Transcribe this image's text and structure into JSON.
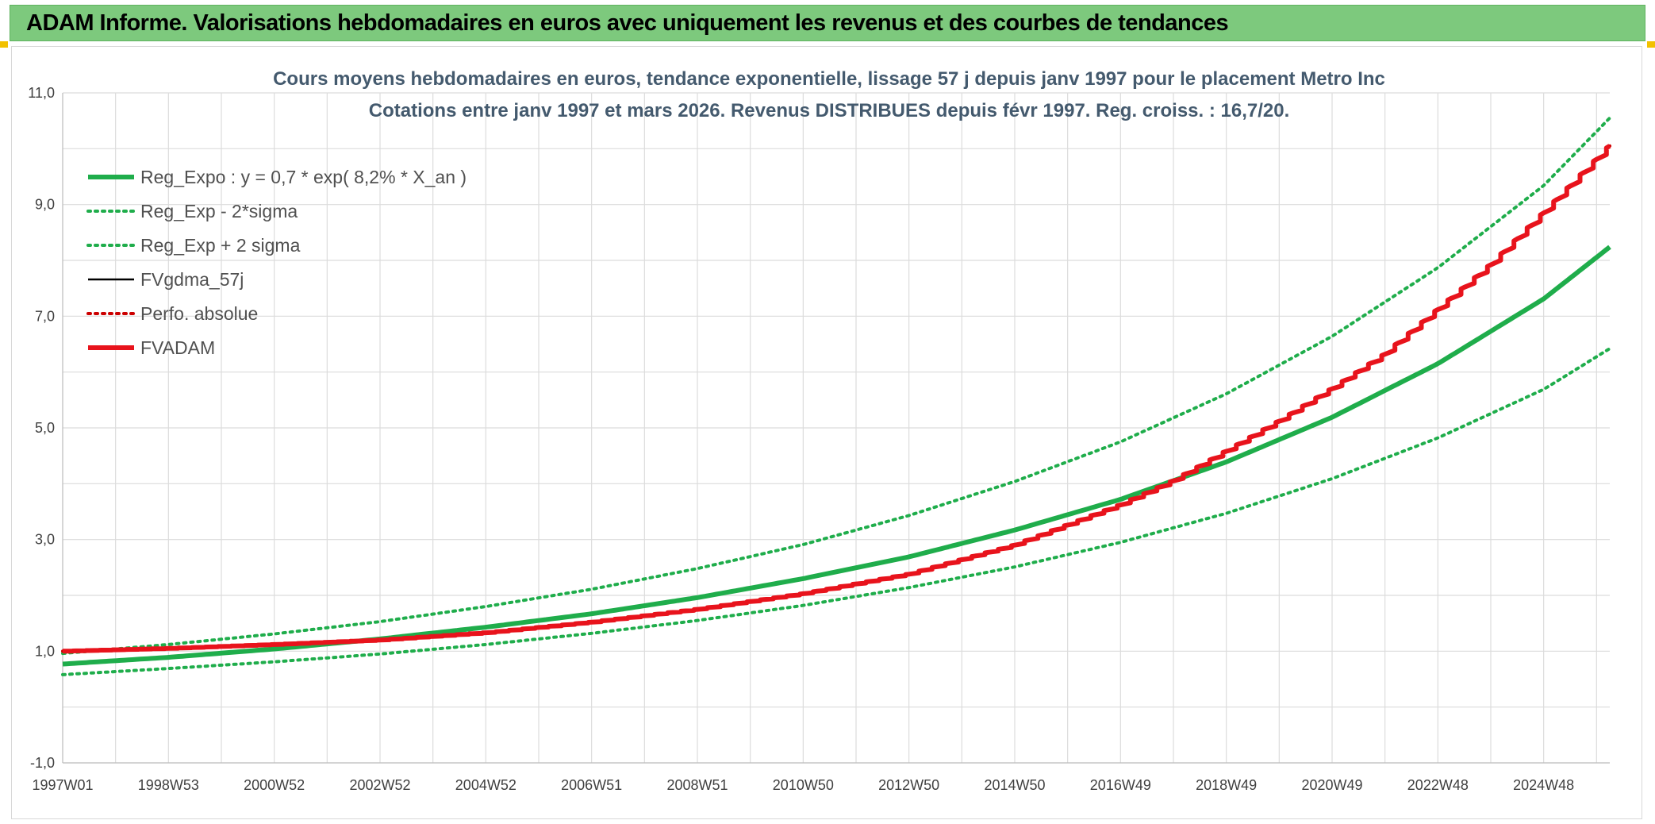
{
  "header": {
    "title": "ADAM Informe. Valorisations hebdomadaires en euros avec uniquement les revenus et des courbes de tendances"
  },
  "chart_data": {
    "type": "line",
    "title_lines": [
      "Cours moyens hebdomadaires en euros, tendance exponentielle, lissage 57 j depuis janv 1997 pour le placement Metro Inc",
      "Cotations entre janv 1997 et mars 2026. Revenus DISTRIBUES depuis févr 1997. Reg. croiss. : 16,7/20."
    ],
    "x_tick_labels": [
      "1997W01",
      "1998W53",
      "2000W52",
      "2002W52",
      "2004W52",
      "2006W51",
      "2008W51",
      "2010W50",
      "2012W50",
      "2014W50",
      "2016W49",
      "2018W49",
      "2020W49",
      "2022W48",
      "2024W48"
    ],
    "x_tick_years": [
      1997.0,
      1999.0,
      2001.0,
      2003.0,
      2005.0,
      2007.0,
      2009.0,
      2011.0,
      2013.0,
      2015.0,
      2017.0,
      2019.0,
      2021.0,
      2023.0,
      2025.0
    ],
    "x_range": [
      1997.0,
      2026.25
    ],
    "ylim": [
      -1.0,
      11.0
    ],
    "y_ticks": [
      -1.0,
      1.0,
      3.0,
      5.0,
      7.0,
      9.0,
      11.0
    ],
    "y_tick_labels": [
      "-1,0",
      "1,0",
      "3,0",
      "5,0",
      "7,0",
      "9,0",
      "11,0"
    ],
    "legend_position": "top-left",
    "grid": true,
    "series": [
      {
        "name": "Reg_Expo : y = 0,7 * exp( 8,2% *  X_an )",
        "color": "#1fad4b",
        "style": "solid-thick",
        "x": [
          1997,
          1999,
          2001,
          2003,
          2005,
          2007,
          2009,
          2011,
          2013,
          2015,
          2017,
          2019,
          2021,
          2023,
          2025,
          2026.25
        ],
        "y": [
          0.77,
          0.89,
          1.04,
          1.22,
          1.43,
          1.67,
          1.96,
          2.3,
          2.69,
          3.17,
          3.72,
          4.39,
          5.19,
          6.15,
          7.31,
          8.24
        ]
      },
      {
        "name": "Reg_Exp - 2*sigma",
        "color": "#1fad4b",
        "style": "dotted",
        "x": [
          1997,
          1999,
          2001,
          2003,
          2005,
          2007,
          2009,
          2011,
          2013,
          2015,
          2017,
          2019,
          2021,
          2023,
          2025,
          2026.25
        ],
        "y": [
          0.58,
          0.69,
          0.81,
          0.95,
          1.12,
          1.32,
          1.55,
          1.82,
          2.14,
          2.51,
          2.95,
          3.47,
          4.09,
          4.82,
          5.69,
          6.42
        ]
      },
      {
        "name": "Reg_Exp + 2 sigma",
        "color": "#1fad4b",
        "style": "dotted",
        "x": [
          1997,
          1999,
          2001,
          2003,
          2005,
          2007,
          2009,
          2011,
          2013,
          2015,
          2017,
          2019,
          2021,
          2023,
          2025,
          2026.25
        ],
        "y": [
          0.96,
          1.12,
          1.31,
          1.53,
          1.8,
          2.11,
          2.48,
          2.91,
          3.43,
          4.04,
          4.75,
          5.61,
          6.64,
          7.87,
          9.34,
          10.55
        ]
      },
      {
        "name": "FVgdma_57j",
        "color": "#000000",
        "style": "solid",
        "x": [
          1997,
          1999,
          2001,
          2003,
          2005,
          2007,
          2009,
          2011,
          2013,
          2015,
          2017,
          2018,
          2019,
          2020,
          2021,
          2022,
          2023,
          2024,
          2025,
          2026.25
        ],
        "y": [
          1.0,
          1.05,
          1.12,
          1.2,
          1.33,
          1.52,
          1.75,
          2.03,
          2.38,
          2.9,
          3.62,
          4.05,
          4.58,
          5.12,
          5.7,
          6.32,
          7.12,
          7.92,
          8.85,
          10.05
        ]
      },
      {
        "name": "Perfo. absolue",
        "color": "#cc0000",
        "style": "dotted",
        "x": [
          1997,
          1999,
          2001,
          2003,
          2005,
          2007,
          2009,
          2011,
          2013,
          2015,
          2017,
          2018,
          2019,
          2020,
          2021,
          2022,
          2023,
          2024,
          2025,
          2026.25
        ],
        "y": [
          1.0,
          1.05,
          1.12,
          1.2,
          1.33,
          1.52,
          1.75,
          2.03,
          2.38,
          2.9,
          3.62,
          4.05,
          4.58,
          5.12,
          5.7,
          6.32,
          7.12,
          7.92,
          8.85,
          10.05
        ]
      },
      {
        "name": "FVADAM",
        "color": "#e8131c",
        "style": "solid-thick",
        "x": [
          1997,
          1999,
          2001,
          2003,
          2005,
          2007,
          2009,
          2011,
          2013,
          2015,
          2017,
          2018,
          2019,
          2020,
          2021,
          2022,
          2023,
          2024,
          2025,
          2026.25
        ],
        "y": [
          1.0,
          1.05,
          1.12,
          1.2,
          1.33,
          1.52,
          1.75,
          2.03,
          2.38,
          2.9,
          3.62,
          4.05,
          4.58,
          5.12,
          5.7,
          6.32,
          7.12,
          7.92,
          8.85,
          10.05
        ]
      }
    ]
  }
}
